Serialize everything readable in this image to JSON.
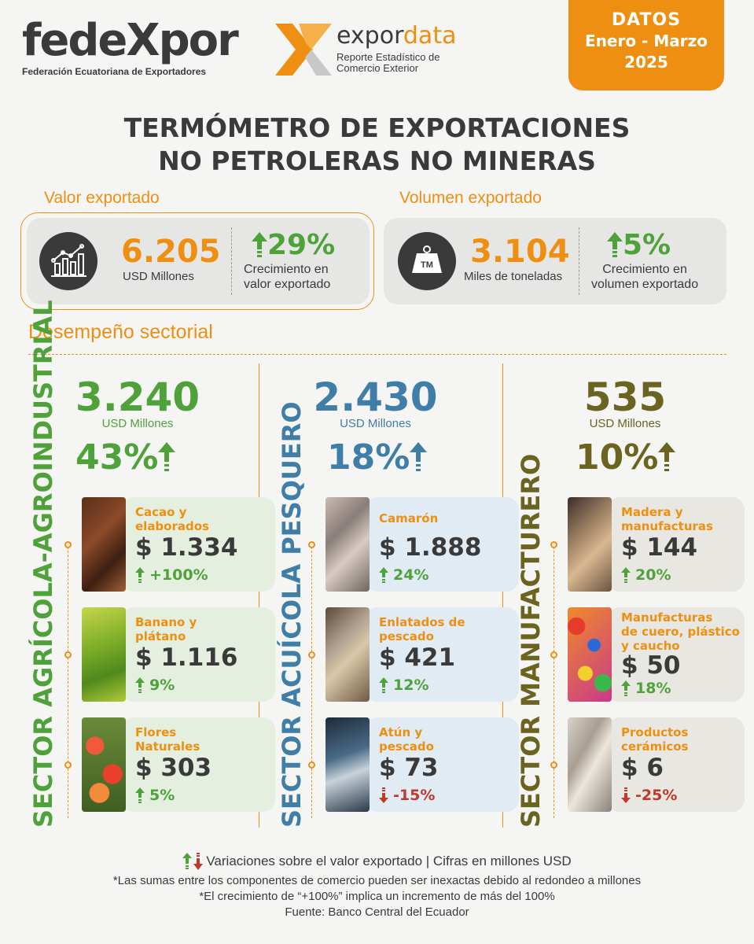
{
  "header": {
    "logo1_word": "fedeXpor",
    "logo1_sub": "Federación Ecuatoriana de Exportadores",
    "logo2_word_a": "expor",
    "logo2_word_b": "data",
    "logo2_sub1": "Reporte Estadístico de",
    "logo2_sub2": "Comercio Exterior",
    "datos_l1": "DATOS",
    "datos_l2": "Enero - Marzo",
    "datos_l3": "2025"
  },
  "title_l1": "TERMÓMETRO DE EXPORTACIONES",
  "title_l2": "NO PETROLERAS NO MINERAS",
  "valor": {
    "heading": "Valor exportado",
    "value": "6.205",
    "unit": "USD Millones",
    "growth": "29%",
    "growth_desc_l1": "Crecimiento en",
    "growth_desc_l2": "valor exportado",
    "icon": "line-chart-icon"
  },
  "volumen": {
    "heading": "Volumen exportado",
    "value": "3.104",
    "unit": "Miles de toneladas",
    "icon_text": "TM",
    "growth": "5%",
    "growth_desc_l1": "Crecimiento en",
    "growth_desc_l2": "volumen exportado",
    "icon": "weight-icon"
  },
  "sectorial_heading": "Desempeño sectorial",
  "sectors": [
    {
      "vertical_label": "SECTOR AGRÍCOLA-AGROINDUSTRIAL",
      "value": "3.240",
      "unit": "USD Millones",
      "pct": "43%",
      "color": "#4fa23a",
      "products": [
        {
          "name_l1": "Cacao y",
          "name_l2": "elaborados",
          "name_l3": "",
          "value": "$ 1.334",
          "growth": "+100%",
          "dir": "up"
        },
        {
          "name_l1": "Banano y",
          "name_l2": "plátano",
          "name_l3": "",
          "value": "$ 1.116",
          "growth": "9%",
          "dir": "up"
        },
        {
          "name_l1": "Flores",
          "name_l2": "Naturales",
          "name_l3": "",
          "value": "$ 303",
          "growth": "5%",
          "dir": "up"
        }
      ]
    },
    {
      "vertical_label": "SECTOR ACUÍCOLA PESQUERO",
      "value": "2.430",
      "unit": "USD Millones",
      "pct": "18%",
      "color": "#3f7ea6",
      "products": [
        {
          "name_l1": "Camarón",
          "name_l2": "",
          "name_l3": "",
          "value": "$ 1.888",
          "growth": "24%",
          "dir": "up"
        },
        {
          "name_l1": "Enlatados de",
          "name_l2": "pescado",
          "name_l3": "",
          "value": "$ 421",
          "growth": "12%",
          "dir": "up"
        },
        {
          "name_l1": "Atún y",
          "name_l2": "pescado",
          "name_l3": "",
          "value": "$ 73",
          "growth": "-15%",
          "dir": "down"
        }
      ]
    },
    {
      "vertical_label": "SECTOR MANUFACTURERO",
      "value": "535",
      "unit": "USD Millones",
      "pct": "10%",
      "color": "#6b6320",
      "products": [
        {
          "name_l1": "Madera y",
          "name_l2": "manufacturas",
          "name_l3": "",
          "value": "$ 144",
          "growth": "20%",
          "dir": "up"
        },
        {
          "name_l1": "Manufacturas",
          "name_l2": "de cuero, plástico",
          "name_l3": "y caucho",
          "value": "$ 50",
          "growth": "18%",
          "dir": "up"
        },
        {
          "name_l1": "Productos",
          "name_l2": "cerámicos",
          "name_l3": "",
          "value": "$ 6",
          "growth": "-25%",
          "dir": "down"
        }
      ]
    }
  ],
  "footer": {
    "legend": "Variaciones sobre el valor exportado | Cifras en millones USD",
    "note1": "*Las sumas entre los componentes de comercio pueden ser inexactas debido al redondeo a millones",
    "note2": "*El crecimiento de “+100%” implica un incremento de más del 100%",
    "source": "Fuente: Banco Central del Ecuador"
  }
}
